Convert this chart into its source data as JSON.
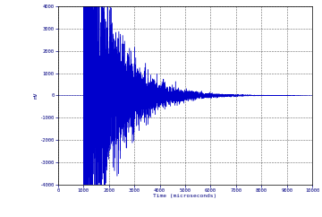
{
  "title": "",
  "xlabel": "Time (microseconds)",
  "ylabel": "mV",
  "xlim": [
    0,
    10000
  ],
  "ylim": [
    -4000,
    4000
  ],
  "xticks": [
    0,
    1000,
    2000,
    3000,
    4000,
    5000,
    6000,
    7000,
    8000,
    9000,
    10000
  ],
  "yticks": [
    -4000,
    -3000,
    -2000,
    -1000,
    0,
    1000,
    2000,
    3000,
    4000
  ],
  "signal_start": 1000,
  "line_color": "#0000cc",
  "background_color": "#ffffff",
  "seed": 42,
  "num_points": 8000,
  "initial_amplitude": 4200,
  "decay_rate": 0.0009,
  "figwidth": 3.6,
  "figheight": 2.42,
  "dpi": 100
}
